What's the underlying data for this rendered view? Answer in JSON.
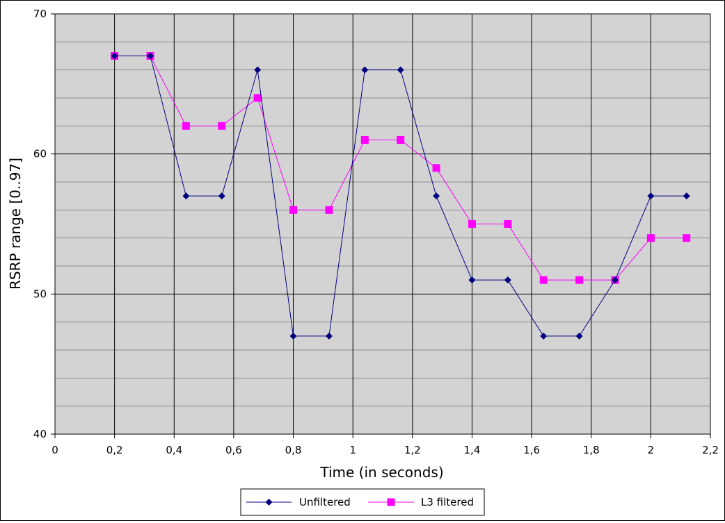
{
  "chart_data": {
    "type": "line",
    "title": "",
    "xlabel": "Time (in seconds)",
    "ylabel": "RSRP range [0..97]",
    "xlim": [
      0,
      2.2
    ],
    "ylim": [
      40,
      70
    ],
    "x_ticks": [
      0,
      0.2,
      0.4,
      0.6,
      0.8,
      1,
      1.2,
      1.4,
      1.6,
      1.8,
      2,
      2.2
    ],
    "x_tick_labels": [
      "0",
      "0,2",
      "0,4",
      "0,6",
      "0,8",
      "1",
      "1,2",
      "1,4",
      "1,6",
      "1,8",
      "2",
      "2,2"
    ],
    "y_ticks": [
      40,
      50,
      60,
      70
    ],
    "y_tick_labels": [
      "40",
      "50",
      "60",
      "70"
    ],
    "y_minor_step": 2,
    "grid": true,
    "plot_background": "#d3d3d3",
    "legend_position": "bottom",
    "x": [
      0.2,
      0.32,
      0.44,
      0.56,
      0.68,
      0.8,
      0.92,
      1.04,
      1.16,
      1.28,
      1.4,
      1.52,
      1.64,
      1.76,
      1.88,
      2.0,
      2.12
    ],
    "series": [
      {
        "name": "Unfiltered",
        "color": "#000080",
        "marker": "diamond",
        "values": [
          67,
          67,
          57,
          57,
          66,
          47,
          47,
          66,
          66,
          57,
          51,
          51,
          47,
          47,
          51,
          57,
          57
        ]
      },
      {
        "name": "L3 filtered",
        "color": "#ff00ff",
        "marker": "square",
        "values": [
          67,
          67,
          62,
          62,
          64,
          56,
          56,
          61,
          61,
          59,
          55,
          55,
          51,
          51,
          51,
          54,
          54
        ]
      }
    ]
  }
}
